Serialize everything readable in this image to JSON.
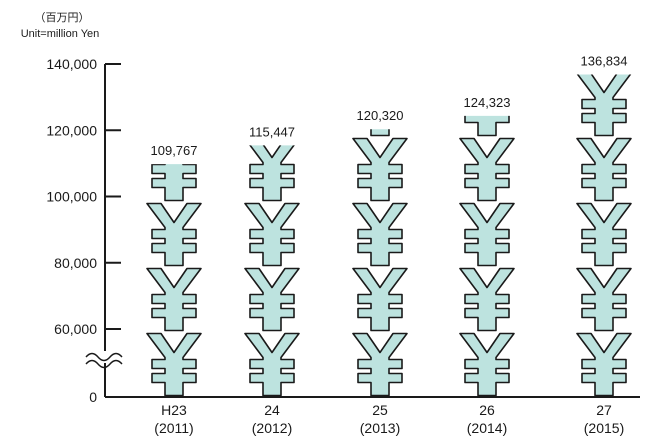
{
  "chart_data": {
    "type": "bar",
    "unit_label_jp": "（百万円）",
    "unit_label_en": "Unit=million Yen",
    "categories": [
      {
        "label": "H23",
        "sub": "(2011)"
      },
      {
        "label": "24",
        "sub": "(2012)"
      },
      {
        "label": "25",
        "sub": "(2013)"
      },
      {
        "label": "26",
        "sub": "(2014)"
      },
      {
        "label": "27",
        "sub": "(2015)"
      }
    ],
    "values": [
      109767,
      115447,
      120320,
      124323,
      136834
    ],
    "value_labels": [
      "109,767",
      "115,447",
      "120,320",
      "124,323",
      "136,834"
    ],
    "y_ticks": [
      {
        "value": 0,
        "label": "0"
      },
      {
        "value": 60000,
        "label": "60,000"
      },
      {
        "value": 80000,
        "label": "80,000"
      },
      {
        "value": 100000,
        "label": "100,000"
      },
      {
        "value": 120000,
        "label": "120,000"
      },
      {
        "value": 140000,
        "label": "140,000"
      }
    ],
    "ylim": [
      0,
      140000
    ],
    "axis_break": true,
    "bar_style": "stacked-yen-symbols",
    "bar_color": "#bde3df",
    "bar_outline": "#1a1a1a",
    "grid": false
  }
}
